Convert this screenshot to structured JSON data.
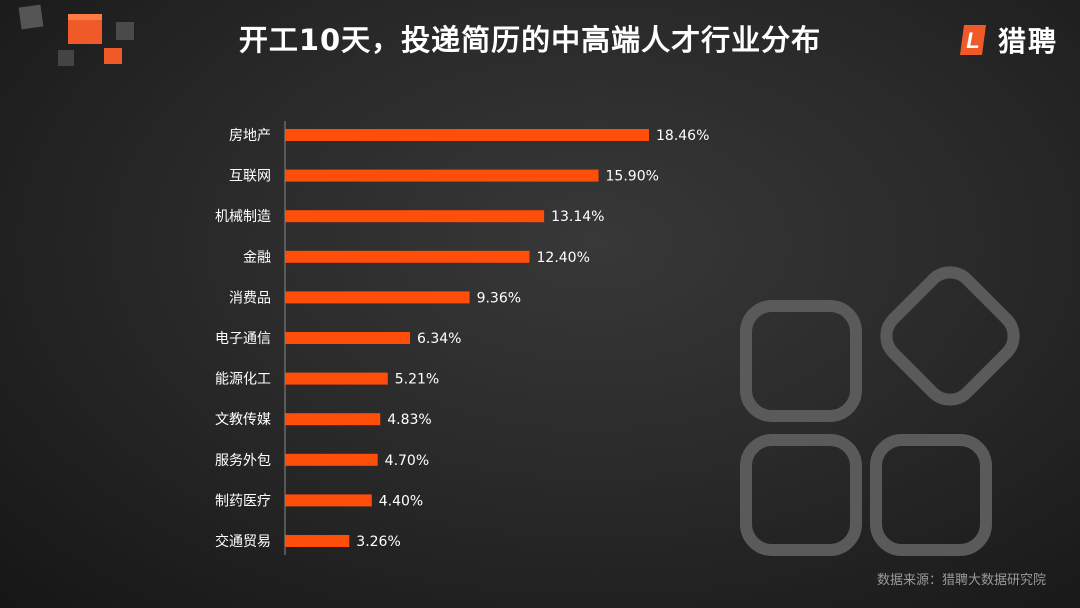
{
  "title": "开工10天，投递简历的中高端人才行业分布",
  "brand": {
    "name": "猎聘",
    "logo_letter": "L",
    "logo_color": "#ef5a28"
  },
  "source": "数据来源：猎聘大数据研究院",
  "colors": {
    "bar": "#ff4d0a",
    "label": "#ffffff",
    "background": "#2a2a2a",
    "deco_stroke": "#5a5a5a",
    "cube_orange": "#ef5a28",
    "cube_gray": "#555555"
  },
  "chart_data": {
    "type": "bar",
    "orientation": "horizontal",
    "categories": [
      "房地产",
      "互联网",
      "机械制造",
      "金融",
      "消费品",
      "电子通信",
      "能源化工",
      "文教传媒",
      "服务外包",
      "制药医疗",
      "交通贸易"
    ],
    "values": [
      18.46,
      15.9,
      13.14,
      12.4,
      9.36,
      6.34,
      5.21,
      4.83,
      4.7,
      4.4,
      3.26
    ],
    "value_labels": [
      "18.46%",
      "15.90%",
      "13.14%",
      "12.40%",
      "9.36%",
      "6.34%",
      "5.21%",
      "4.83%",
      "4.70%",
      "4.40%",
      "3.26%"
    ],
    "unit": "%",
    "xlim": [
      0,
      18.46
    ],
    "axis_line": true,
    "grid": false,
    "legend": "none"
  }
}
